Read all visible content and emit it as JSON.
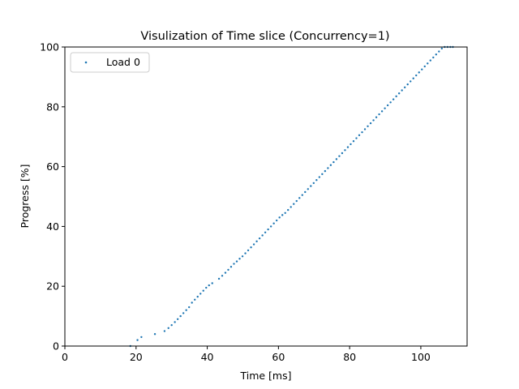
{
  "chart_data": {
    "type": "scatter",
    "title": "Visulization of Time slice (Concurrency=1)",
    "xlabel": "Time [ms]",
    "ylabel": "Progress [%]",
    "xlim": [
      0,
      113
    ],
    "ylim": [
      0,
      100
    ],
    "xticks": [
      0,
      20,
      40,
      60,
      80,
      100
    ],
    "yticks": [
      0,
      20,
      40,
      60,
      80,
      100
    ],
    "grid": false,
    "legend_position": "top-left",
    "series": [
      {
        "name": "Load 0",
        "color": "#1f77b4",
        "x": [
          18.4,
          20.4,
          21.5,
          25.3,
          28.0,
          29.1,
          30.0,
          30.9,
          31.7,
          32.5,
          33.3,
          34.1,
          34.9,
          35.7,
          36.5,
          37.3,
          38.1,
          38.9,
          39.7,
          40.5,
          41.4,
          43.3,
          44.2,
          45.1,
          45.9,
          46.7,
          47.5,
          48.3,
          49.1,
          49.9,
          50.7,
          51.5,
          52.3,
          53.1,
          53.9,
          54.7,
          55.5,
          56.3,
          57.1,
          57.9,
          58.7,
          59.5,
          60.3,
          61.1,
          61.9,
          62.7,
          63.5,
          64.3,
          65.1,
          65.9,
          66.7,
          67.5,
          68.3,
          69.1,
          69.9,
          70.7,
          71.5,
          72.3,
          73.1,
          73.9,
          74.7,
          75.5,
          76.3,
          77.1,
          77.9,
          78.7,
          79.5,
          80.3,
          81.1,
          81.9,
          82.7,
          83.5,
          84.3,
          85.1,
          85.9,
          86.7,
          87.5,
          88.3,
          89.1,
          89.9,
          90.7,
          91.5,
          92.3,
          93.1,
          93.9,
          94.7,
          95.5,
          96.3,
          97.1,
          97.9,
          98.7,
          99.5,
          100.3,
          101.1,
          101.9,
          102.7,
          103.5,
          104.3,
          105.1,
          105.9,
          106.7,
          107.5,
          108.3,
          109.0
        ],
        "y": [
          0.0,
          2.0,
          3.0,
          4.0,
          5.0,
          6.0,
          7.0,
          8.0,
          9.0,
          10.0,
          11.0,
          12.0,
          13.0,
          14.5,
          15.5,
          16.5,
          17.5,
          18.5,
          19.5,
          20.3,
          21.0,
          22.5,
          23.5,
          24.5,
          25.5,
          26.5,
          27.5,
          28.3,
          29.2,
          30.0,
          31.0,
          32.0,
          33.0,
          34.0,
          35.0,
          36.0,
          37.0,
          38.0,
          39.0,
          40.0,
          41.0,
          42.0,
          43.0,
          43.8,
          44.5,
          45.5,
          46.5,
          47.5,
          48.5,
          49.5,
          50.5,
          51.5,
          52.5,
          53.5,
          54.5,
          55.5,
          56.5,
          57.5,
          58.5,
          59.5,
          60.5,
          61.5,
          62.5,
          63.5,
          64.5,
          65.5,
          66.5,
          67.5,
          68.5,
          69.5,
          70.5,
          71.5,
          72.5,
          73.5,
          74.5,
          75.5,
          76.5,
          77.5,
          78.5,
          79.5,
          80.5,
          81.5,
          82.5,
          83.5,
          84.5,
          85.5,
          86.5,
          87.5,
          88.5,
          89.5,
          90.5,
          91.5,
          92.5,
          93.5,
          94.5,
          95.5,
          96.5,
          97.5,
          98.5,
          99.5,
          100.0,
          100.0,
          100.0,
          100.0
        ]
      }
    ]
  }
}
